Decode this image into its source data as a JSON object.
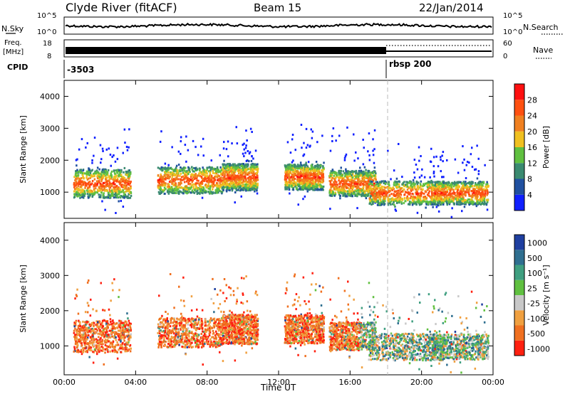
{
  "header": {
    "station": "Clyde River (fitACF)",
    "beam": "Beam 15",
    "date": "22/Jan/2014"
  },
  "top_strip": {
    "left_label": "N.Sky",
    "left_ticks": [
      "10^5",
      "10^0"
    ],
    "right_label": "N.Search",
    "right_ticks": [
      "10^5",
      "10^0"
    ]
  },
  "freq_strip": {
    "left_label_line1": "Freq.",
    "left_label_line2": "[MHz]",
    "left_ticks": [
      "18",
      "8"
    ],
    "right_label": "Nave",
    "right_ticks": [
      "60",
      "0"
    ]
  },
  "cpid_strip": {
    "label": "CPID",
    "segments": [
      {
        "label": "-3503",
        "start_hour": 0
      },
      {
        "label": "rbsp 200",
        "start_hour": 18.1
      }
    ]
  },
  "chart_data": [
    {
      "type": "heatmap",
      "title": "",
      "xlabel": "",
      "ylabel": "Slant Range [km]",
      "xlim": [
        0,
        24
      ],
      "ylim": [
        180,
        4500
      ],
      "yticks": [
        "1000",
        "2000",
        "3000",
        "4000"
      ],
      "xtick_labels": [],
      "colorbar_label": "Power [dB]",
      "colorbar_ticks": [
        "4",
        "8",
        "12",
        "16",
        "20",
        "24",
        "28"
      ],
      "colors": [
        "#1020ff",
        "#2050a0",
        "#3a8a70",
        "#60c040",
        "#f0c020",
        "#f08020",
        "#ff5010",
        "#ff1010"
      ],
      "marker_hour": 18.1
    },
    {
      "type": "heatmap",
      "title": "",
      "xlabel": "Time UT",
      "ylabel": "Slant Range [km]",
      "xlim": [
        0,
        24
      ],
      "ylim": [
        180,
        4500
      ],
      "yticks": [
        "1000",
        "2000",
        "3000",
        "4000"
      ],
      "xtick_labels": [
        "00:00",
        "04:00",
        "08:00",
        "12:00",
        "16:00",
        "20:00",
        "00:00"
      ],
      "colorbar_label": "Velocity [m s⁻¹]",
      "colorbar_ticks": [
        "1000",
        "500",
        "100",
        "25",
        "-25",
        "-100",
        "-500",
        "-1000"
      ],
      "colors": [
        "#1f3fa0",
        "#2f6f90",
        "#3f9f80",
        "#60c040",
        "#c8c8c8",
        "#f0a040",
        "#f07020",
        "#ff2010"
      ],
      "marker_hour": 18.1
    }
  ]
}
